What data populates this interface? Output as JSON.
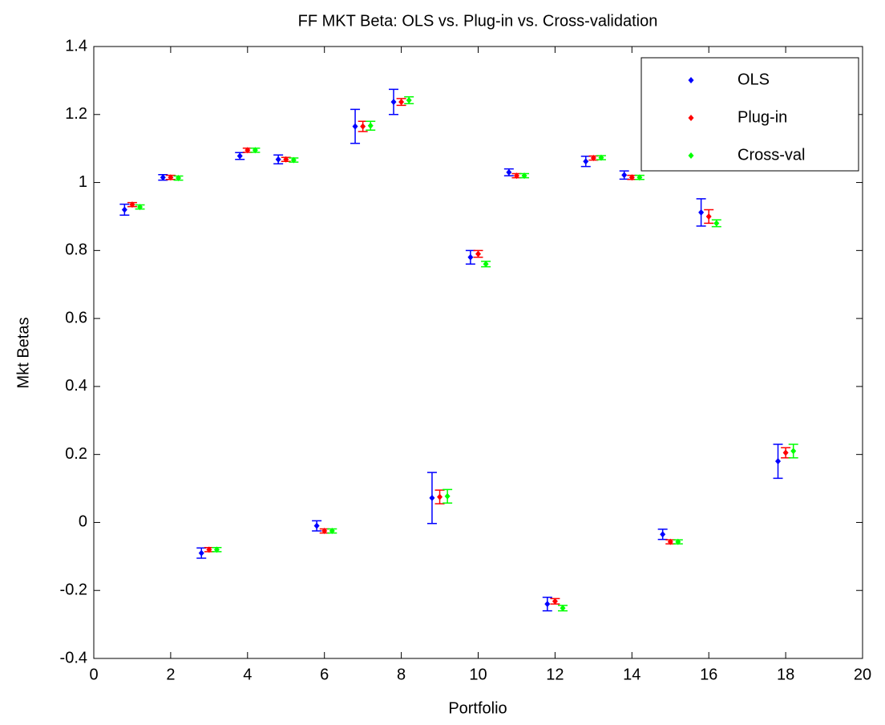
{
  "chart_data": {
    "type": "errorbar",
    "title": "FF MKT Beta: OLS  vs. Plug-in vs. Cross-validation",
    "xlabel": "Portfolio",
    "ylabel": "Mkt Betas",
    "xlim": [
      0,
      20
    ],
    "ylim": [
      -0.4,
      1.4
    ],
    "xticks": [
      0,
      2,
      4,
      6,
      8,
      10,
      12,
      14,
      16,
      18,
      20
    ],
    "yticks": [
      -0.4,
      -0.2,
      0,
      0.2,
      0.4,
      0.6,
      0.8,
      1,
      1.2,
      1.4
    ],
    "legend": "upper right",
    "series": [
      {
        "name": "OLS",
        "color": "#0000ff",
        "x": [
          0.8,
          1.8,
          2.8,
          3.8,
          4.8,
          5.8,
          6.8,
          7.8,
          8.8,
          9.8,
          10.8,
          11.8,
          12.8,
          13.8,
          14.8,
          15.8,
          17.8
        ],
        "values": [
          0.92,
          1.015,
          -0.09,
          1.078,
          1.068,
          -0.01,
          1.165,
          1.237,
          0.072,
          0.78,
          1.03,
          -0.24,
          1.062,
          1.022,
          -0.035,
          0.912,
          0.18
        ],
        "errors": [
          0.016,
          0.008,
          0.015,
          0.01,
          0.013,
          0.015,
          0.05,
          0.037,
          0.075,
          0.02,
          0.01,
          0.02,
          0.015,
          0.012,
          0.015,
          0.04,
          0.05
        ]
      },
      {
        "name": "Plug-in",
        "color": "#ff0000",
        "x": [
          1,
          2,
          3,
          4,
          5,
          6,
          7,
          8,
          9,
          10,
          11,
          12,
          13,
          14,
          15,
          16,
          18
        ],
        "values": [
          0.935,
          1.015,
          -0.08,
          1.095,
          1.068,
          -0.025,
          1.165,
          1.237,
          0.075,
          0.79,
          1.02,
          -0.232,
          1.072,
          1.015,
          -0.057,
          0.9,
          0.205
        ],
        "errors": [
          0.006,
          0.006,
          0.006,
          0.006,
          0.006,
          0.006,
          0.015,
          0.01,
          0.02,
          0.01,
          0.006,
          0.008,
          0.006,
          0.006,
          0.006,
          0.02,
          0.015
        ]
      },
      {
        "name": "Cross-val",
        "color": "#00ff00",
        "x": [
          1.2,
          2.2,
          3.2,
          4.2,
          5.2,
          6.2,
          7.2,
          8.2,
          9.2,
          10.2,
          11.2,
          12.2,
          13.2,
          14.2,
          15.2,
          16.2,
          18.2
        ],
        "values": [
          0.928,
          1.013,
          -0.08,
          1.095,
          1.066,
          -0.025,
          1.167,
          1.242,
          0.077,
          0.76,
          1.02,
          -0.252,
          1.073,
          1.015,
          -0.057,
          0.88,
          0.21
        ],
        "errors": [
          0.006,
          0.006,
          0.006,
          0.006,
          0.006,
          0.006,
          0.013,
          0.01,
          0.02,
          0.008,
          0.006,
          0.008,
          0.006,
          0.006,
          0.006,
          0.01,
          0.02
        ]
      }
    ]
  }
}
